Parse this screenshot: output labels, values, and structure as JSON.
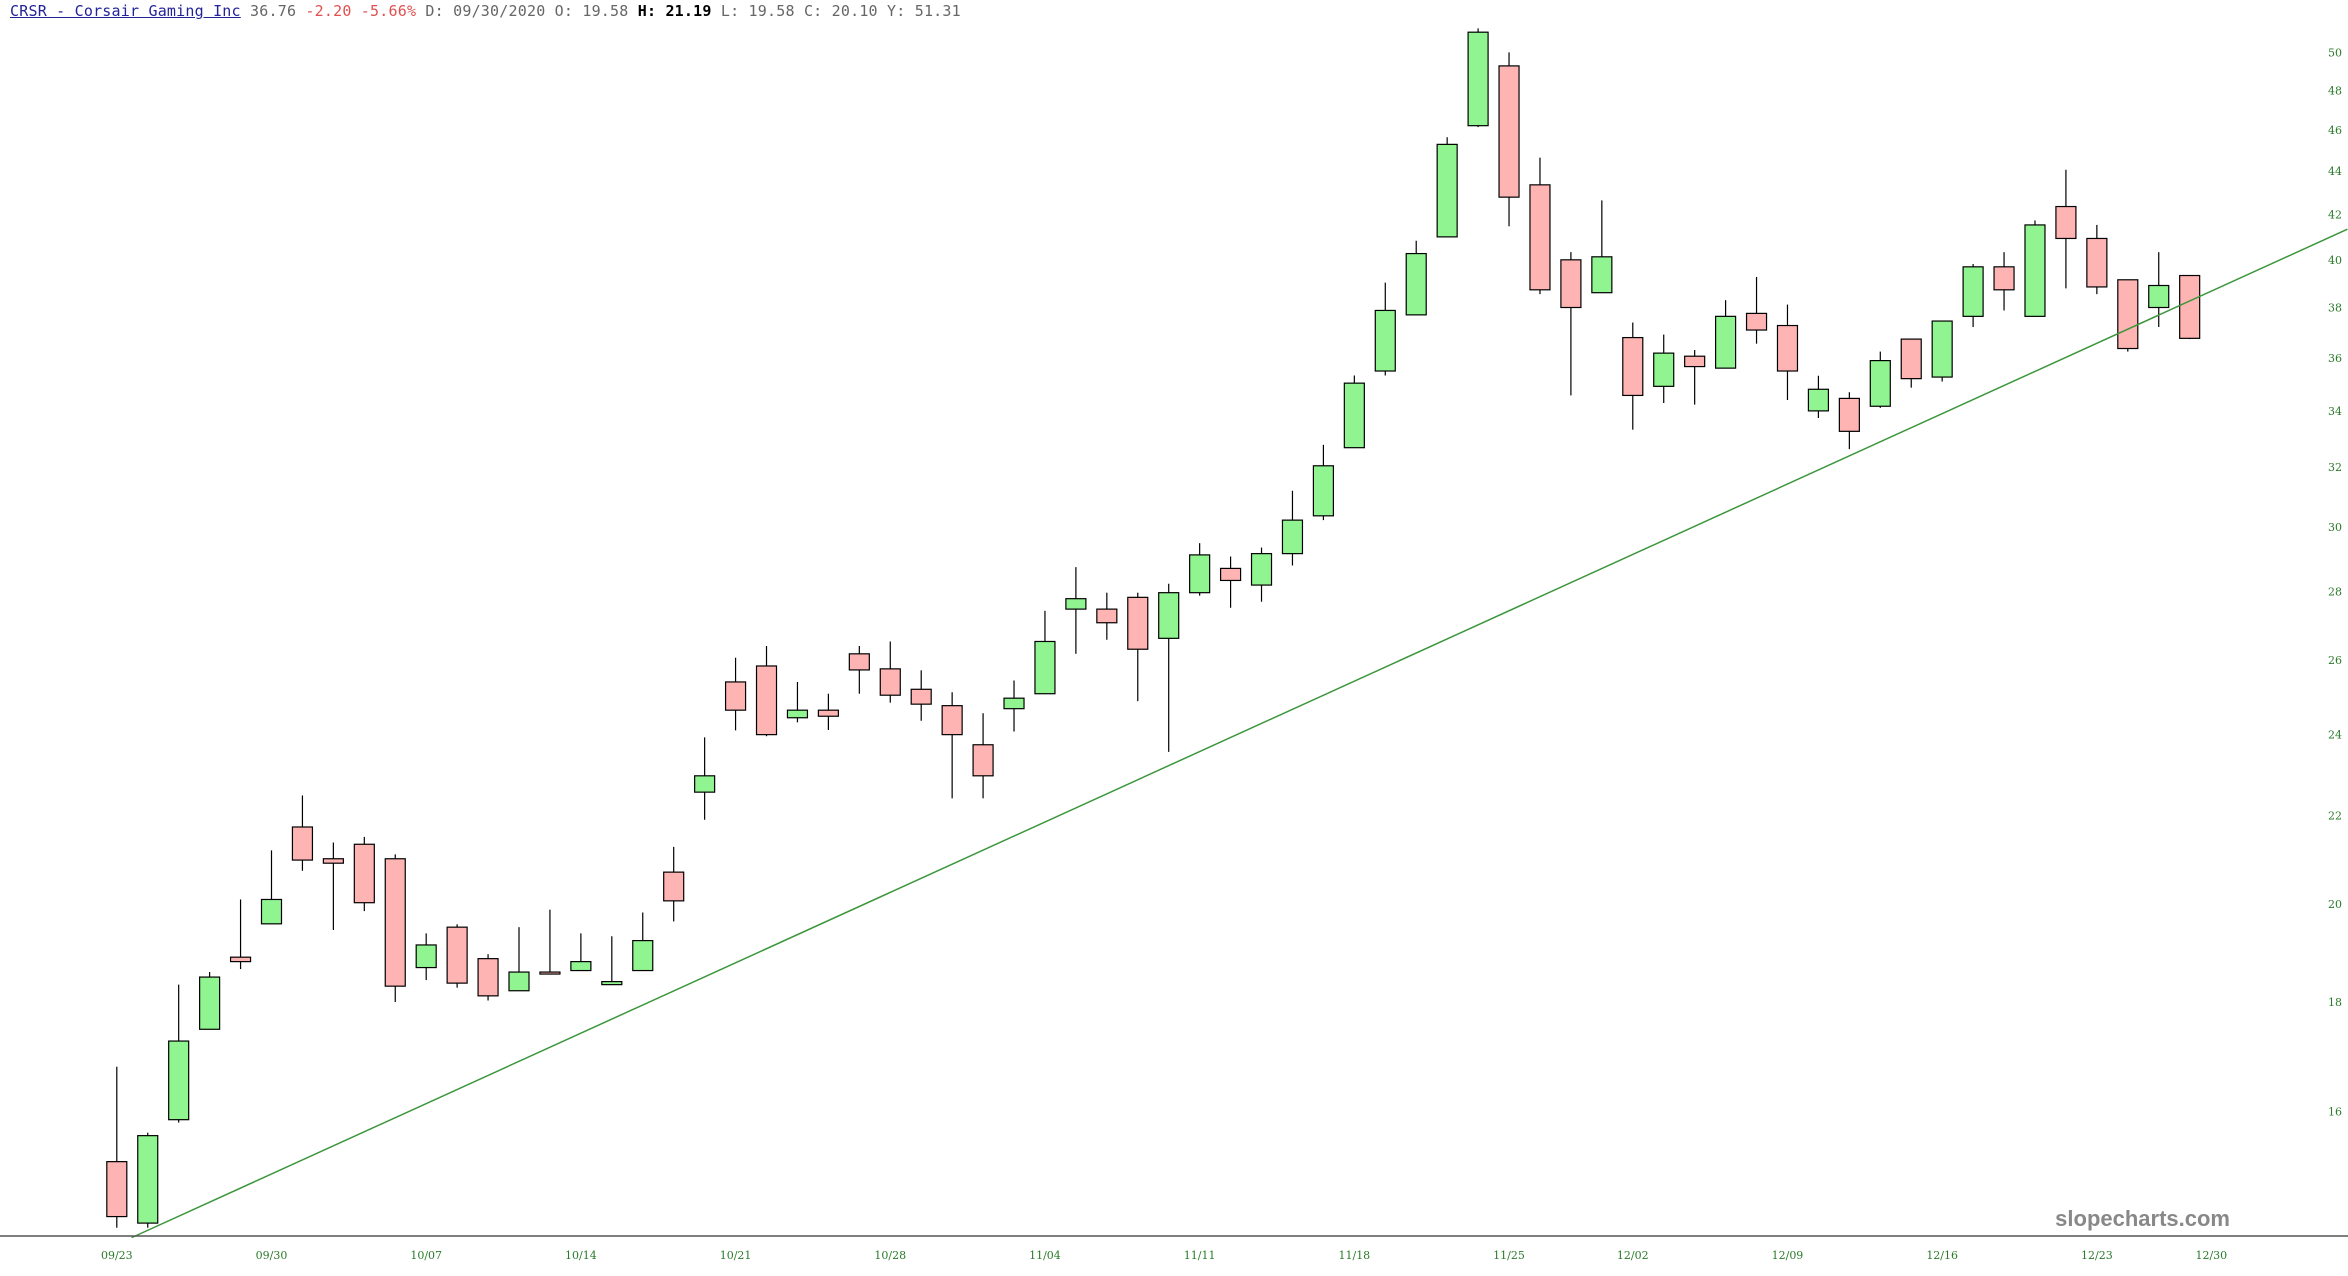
{
  "header": {
    "ticker_link": "CRSR - Corsair Gaming Inc",
    "last": "36.76",
    "change": "-2.20",
    "change_pct": "-5.66%",
    "date": "D: 09/30/2020",
    "open": "O: 19.58",
    "high_label": "H:",
    "high_value": "21.19",
    "low": "L: 19.58",
    "close": "C: 20.10",
    "year_high": "Y: 51.31"
  },
  "watermark": "slopecharts.com",
  "colors": {
    "up": "#90f590",
    "down": "#ffb4b4",
    "trendline": "#3c963c",
    "axis_text": "#2a7a2a"
  },
  "chart_data": {
    "type": "candlestick",
    "yscale": "log",
    "ylim": [
      14.0,
      51.5
    ],
    "yticks": [
      "16",
      "18",
      "20",
      "22",
      "24",
      "26",
      "28",
      "30",
      "32",
      "34",
      "36",
      "38",
      "40",
      "42",
      "44",
      "46",
      "48",
      "50"
    ],
    "xticks": [
      {
        "label": "09/23",
        "index": 0
      },
      {
        "label": "09/30",
        "index": 5
      },
      {
        "label": "10/07",
        "index": 10
      },
      {
        "label": "10/14",
        "index": 15
      },
      {
        "label": "10/21",
        "index": 20
      },
      {
        "label": "10/28",
        "index": 25
      },
      {
        "label": "11/04",
        "index": 30
      },
      {
        "label": "11/11",
        "index": 35
      },
      {
        "label": "11/18",
        "index": 40
      },
      {
        "label": "11/25",
        "index": 45
      },
      {
        "label": "12/02",
        "index": 49
      },
      {
        "label": "12/09",
        "index": 54
      },
      {
        "label": "12/16",
        "index": 59
      },
      {
        "label": "12/23",
        "index": 64
      },
      {
        "label": "12/30",
        "index": 67.7
      }
    ],
    "ohlc": [
      [
        15.16,
        16.79,
        14.12,
        14.29
      ],
      [
        14.19,
        15.64,
        14.12,
        15.59
      ],
      [
        15.86,
        18.34,
        15.81,
        17.26
      ],
      [
        17.48,
        18.59,
        17.48,
        18.49
      ],
      [
        18.89,
        20.1,
        18.65,
        18.8
      ],
      [
        19.58,
        21.19,
        19.58,
        20.1
      ],
      [
        21.73,
        22.48,
        20.73,
        20.97
      ],
      [
        21.0,
        21.37,
        19.45,
        20.9
      ],
      [
        21.33,
        21.5,
        19.85,
        20.03
      ],
      [
        21.0,
        21.1,
        18.0,
        18.31
      ],
      [
        18.68,
        19.38,
        18.43,
        19.14
      ],
      [
        19.51,
        19.57,
        18.28,
        18.37
      ],
      [
        18.86,
        18.95,
        18.03,
        18.12
      ],
      [
        18.22,
        19.51,
        18.22,
        18.59
      ],
      [
        18.59,
        19.88,
        18.55,
        18.55
      ],
      [
        18.62,
        19.38,
        18.62,
        18.8
      ],
      [
        18.34,
        19.32,
        18.34,
        18.4
      ],
      [
        18.62,
        19.82,
        18.62,
        19.23
      ],
      [
        20.7,
        21.27,
        19.63,
        20.07
      ],
      [
        22.56,
        23.93,
        21.9,
        22.96
      ],
      [
        25.4,
        26.07,
        24.11,
        24.64
      ],
      [
        25.84,
        26.4,
        23.96,
        24.0
      ],
      [
        24.44,
        25.4,
        24.32,
        24.64
      ],
      [
        24.64,
        25.08,
        24.12,
        24.48
      ],
      [
        26.18,
        26.4,
        25.08,
        25.73
      ],
      [
        25.76,
        26.53,
        24.84,
        25.04
      ],
      [
        25.2,
        25.72,
        24.36,
        24.8
      ],
      [
        24.76,
        25.12,
        22.41,
        24.0
      ],
      [
        23.74,
        24.56,
        22.41,
        22.96
      ],
      [
        24.68,
        25.44,
        24.08,
        24.96
      ],
      [
        25.08,
        27.42,
        25.08,
        26.53
      ],
      [
        27.47,
        28.74,
        26.18,
        27.78
      ],
      [
        27.47,
        27.96,
        26.58,
        27.07
      ],
      [
        27.82,
        27.96,
        24.88,
        26.31
      ],
      [
        26.62,
        28.23,
        23.56,
        27.96
      ],
      [
        27.96,
        29.49,
        27.87,
        29.12
      ],
      [
        28.7,
        29.07,
        27.51,
        28.33
      ],
      [
        28.19,
        29.35,
        27.69,
        29.16
      ],
      [
        29.16,
        31.2,
        28.79,
        30.23
      ],
      [
        30.37,
        32.78,
        30.23,
        32.05
      ],
      [
        32.68,
        35.32,
        32.68,
        35.03
      ],
      [
        35.49,
        39.03,
        35.32,
        37.88
      ],
      [
        37.7,
        40.83,
        37.7,
        40.27
      ],
      [
        41.0,
        45.64,
        41.0,
        45.29
      ],
      [
        46.21,
        51.31,
        46.14,
        51.1
      ],
      [
        49.28,
        50.0,
        41.47,
        42.79
      ],
      [
        43.36,
        44.65,
        38.55,
        38.73
      ],
      [
        40.0,
        40.33,
        34.57,
        38.0
      ],
      [
        38.61,
        42.64,
        38.61,
        40.13
      ],
      [
        36.79,
        37.39,
        33.32,
        34.57
      ],
      [
        34.91,
        36.91,
        34.29,
        36.18
      ],
      [
        36.06,
        36.3,
        34.23,
        35.66
      ],
      [
        35.6,
        38.3,
        35.6,
        37.64
      ],
      [
        37.76,
        39.27,
        36.55,
        37.09
      ],
      [
        37.27,
        38.12,
        34.4,
        35.49
      ],
      [
        34.0,
        35.31,
        33.74,
        34.8
      ],
      [
        34.46,
        34.69,
        32.63,
        33.26
      ],
      [
        34.17,
        36.24,
        34.11,
        35.89
      ],
      [
        36.73,
        36.73,
        34.86,
        35.2
      ],
      [
        35.26,
        37.45,
        35.09,
        37.45
      ],
      [
        37.64,
        39.82,
        37.21,
        39.7
      ],
      [
        39.7,
        40.33,
        37.88,
        38.73
      ],
      [
        37.64,
        41.73,
        37.64,
        41.53
      ],
      [
        42.36,
        44.07,
        38.79,
        40.93
      ],
      [
        40.93,
        41.53,
        38.55,
        38.85
      ],
      [
        39.15,
        39.15,
        36.24,
        36.36
      ],
      [
        38.0,
        40.33,
        37.21,
        38.91
      ],
      [
        39.33,
        39.33,
        36.73,
        36.76
      ]
    ],
    "trendline": [
      {
        "index": 0.48,
        "price": 13.97
      },
      {
        "index": 72.1,
        "price": 41.34
      }
    ]
  }
}
